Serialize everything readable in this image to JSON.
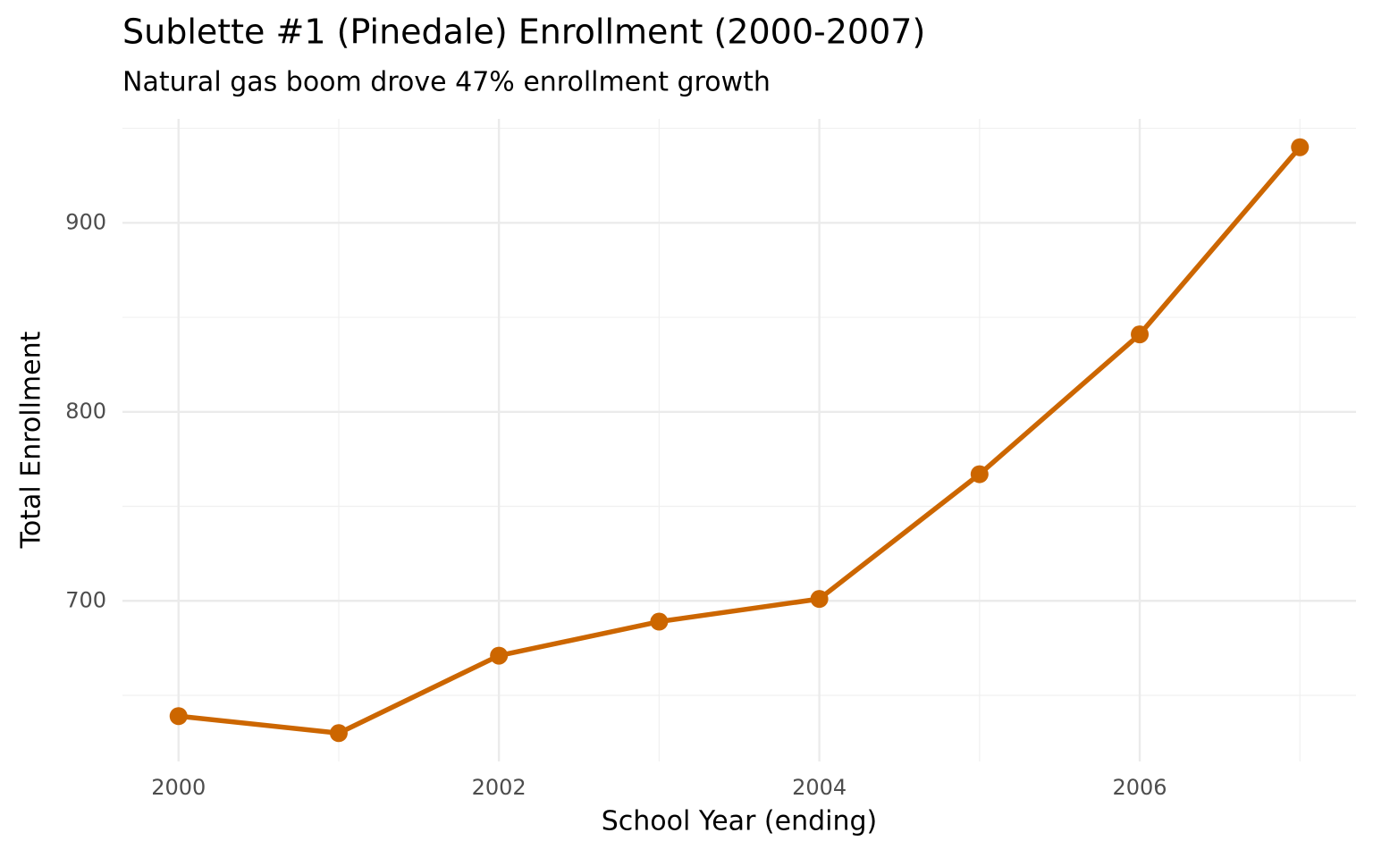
{
  "chart_data": {
    "type": "line",
    "title": "Sublette #1 (Pinedale) Enrollment (2000-2007)",
    "subtitle": "Natural gas boom drove 47% enrollment growth",
    "x_label": "School Year (ending)",
    "y_label": "Total Enrollment",
    "x": [
      2000,
      2001,
      2002,
      2003,
      2004,
      2005,
      2006,
      2007
    ],
    "series": [
      {
        "name": "Enrollment",
        "color": "#cc6600",
        "values": [
          639,
          630,
          671,
          689,
          701,
          767,
          841,
          940
        ]
      }
    ],
    "xlim": [
      1999.65,
      2007.35
    ],
    "xticks": [
      2000,
      2002,
      2004,
      2006
    ],
    "ylim": [
      615,
      955
    ],
    "yticks": [
      700,
      800,
      900
    ],
    "grid": true
  }
}
